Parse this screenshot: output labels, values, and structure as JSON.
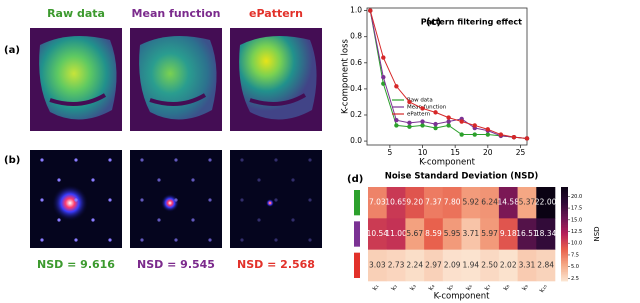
{
  "images": {
    "row_labels": [
      "(a)",
      "(b)"
    ],
    "columns": [
      {
        "title": "Raw data",
        "color": "#3c9a2e",
        "nsd": "NSD = 9.616"
      },
      {
        "title": "Mean function",
        "color": "#7b2a8c",
        "nsd": "NSD = 9.545"
      },
      {
        "title": "ePattern",
        "color": "#e2312a",
        "nsd": "NSD = 2.568"
      }
    ]
  },
  "chart_data": [
    {
      "type": "line",
      "panel": "(c)",
      "title": "Pattern filtering effect",
      "x_label": "K-component",
      "y_label": "K-component loss",
      "x": [
        2,
        4,
        6,
        8,
        10,
        12,
        14,
        16,
        18,
        20,
        22,
        24,
        26
      ],
      "series": [
        {
          "name": "Raw data",
          "color": "#2ca02c",
          "values": [
            1.0,
            0.44,
            0.12,
            0.11,
            0.12,
            0.1,
            0.12,
            0.05,
            0.05,
            0.05,
            0.04,
            0.03,
            0.02
          ]
        },
        {
          "name": "Mean function",
          "color": "#7b3294",
          "values": [
            1.0,
            0.49,
            0.16,
            0.14,
            0.15,
            0.13,
            0.15,
            0.17,
            0.1,
            0.08,
            0.04,
            0.03,
            0.02
          ]
        },
        {
          "name": "ePattern",
          "color": "#d62728",
          "values": [
            1.0,
            0.64,
            0.42,
            0.3,
            0.25,
            0.22,
            0.18,
            0.15,
            0.12,
            0.09,
            0.05,
            0.03,
            0.02
          ]
        }
      ],
      "xlim": [
        1.5,
        26
      ],
      "xticks": [
        5,
        10,
        15,
        20,
        25
      ],
      "ylim": [
        -0.03,
        1.02
      ],
      "yticks": [
        {
          "value": 0,
          "label": "0.0"
        },
        0.2,
        0.4,
        0.6,
        0.8,
        {
          "value": 1,
          "label": "1.0"
        }
      ],
      "legend": "middle-left"
    },
    {
      "type": "heatmap",
      "panel": "(d)",
      "title": "Noise Standard Deviation (NSD)",
      "x_label": "K-component",
      "colorbar_label": "NSD",
      "categories": [
        "k₁",
        "k₂",
        "k₃",
        "k₄",
        "k₅",
        "k₆",
        "k₇",
        "k₈",
        "k₉",
        "k₁₀"
      ],
      "rows": [
        {
          "color": "#2ca02c",
          "values": [
            7.03,
            10.65,
            9.2,
            7.37,
            7.8,
            5.92,
            6.24,
            14.58,
            5.37,
            22.0
          ],
          "value_labels": [
            "7.03",
            "10.65",
            "9.20",
            "7.37",
            "7.80",
            "5.92",
            "6.24",
            "14.58",
            "5.37",
            "22.00"
          ]
        },
        {
          "color": "#7b3294",
          "values": [
            10.54,
            11.0,
            5.67,
            8.59,
            5.95,
            3.71,
            5.97,
            9.18,
            16.51,
            18.34
          ],
          "value_labels": [
            "10.54",
            "11.00",
            "5.67",
            "8.59",
            "5.95",
            "3.71",
            "5.97",
            "9.18",
            "16.51",
            "18.34"
          ]
        },
        {
          "color": "#e2312a",
          "values": [
            3.03,
            2.73,
            2.24,
            2.97,
            2.09,
            1.94,
            2.5,
            2.02,
            3.31,
            2.84
          ],
          "value_labels": [
            "3.03",
            "2.73",
            "2.24",
            "2.97",
            "2.09",
            "1.94",
            "2.50",
            "2.02",
            "3.31",
            "2.84"
          ]
        }
      ],
      "clim": [
        1.94,
        22.0
      ],
      "colormap": [
        "#fbe3cf",
        "#f5a986",
        "#e8604c",
        "#b51f59",
        "#6b1654",
        "#2c0a36",
        "#0a0213"
      ],
      "cticks": [
        2.5,
        {
          "value": 5,
          "label": "5.0"
        },
        7.5,
        {
          "value": 10,
          "label": "10.0"
        },
        12.5,
        {
          "value": 15,
          "label": "15.0"
        },
        17.5,
        {
          "value": 20,
          "label": "20.0"
        }
      ]
    }
  ]
}
